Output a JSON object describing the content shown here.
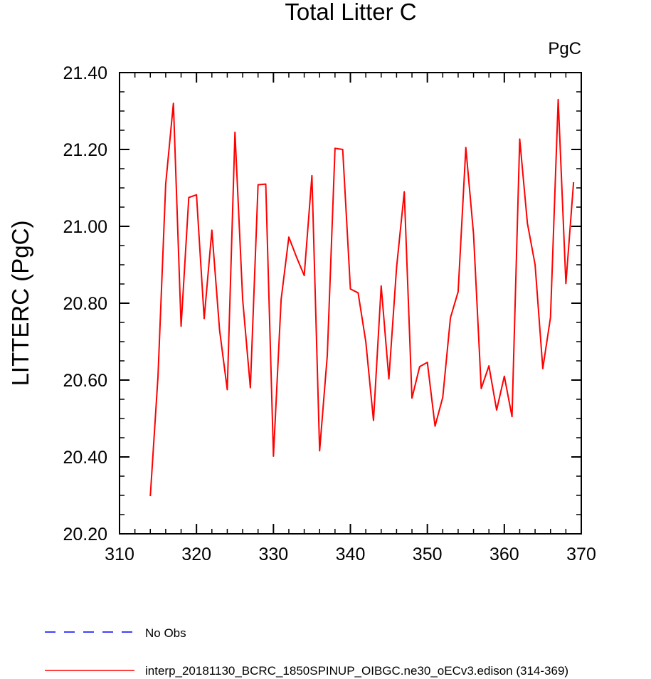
{
  "chart_data": {
    "type": "line",
    "title": "Total Litter C",
    "units_label": "PgC",
    "ylabel": "LITTERC  (PgC)",
    "xlabel": "",
    "xlim": [
      310,
      370
    ],
    "ylim": [
      20.2,
      21.4
    ],
    "x_ticks": [
      310,
      320,
      330,
      340,
      350,
      360,
      370
    ],
    "x_tick_labels": [
      "310",
      "320",
      "330",
      "340",
      "350",
      "360",
      "370"
    ],
    "y_ticks": [
      20.2,
      20.4,
      20.6,
      20.8,
      21.0,
      21.2,
      21.4
    ],
    "y_tick_labels": [
      "20.20",
      "20.40",
      "20.60",
      "20.80",
      "21.00",
      "21.20",
      "21.40"
    ],
    "grid": false,
    "legend_position": "bottom",
    "series": [
      {
        "name": "interp_20181130_BCRC_1850SPINUP_OIBGC.ne30_oECv3.edison (314-369)",
        "color": "#ff0000",
        "dash": "solid",
        "x": [
          314,
          315,
          316,
          317,
          318,
          319,
          320,
          321,
          322,
          323,
          324,
          325,
          326,
          327,
          328,
          329,
          330,
          331,
          332,
          333,
          334,
          335,
          336,
          337,
          338,
          339,
          340,
          341,
          342,
          343,
          344,
          345,
          346,
          347,
          348,
          349,
          350,
          351,
          352,
          353,
          354,
          355,
          356,
          357,
          358,
          359,
          360,
          361,
          362,
          363,
          364,
          365,
          366,
          367,
          368,
          369
        ],
        "values": [
          20.298,
          20.61,
          21.11,
          21.32,
          20.74,
          21.075,
          21.082,
          20.76,
          20.99,
          20.73,
          20.575,
          21.245,
          20.81,
          20.58,
          21.108,
          21.11,
          20.402,
          20.81,
          20.972,
          20.92,
          20.872,
          21.132,
          20.416,
          20.665,
          21.203,
          21.2,
          20.837,
          20.827,
          20.7,
          20.495,
          20.845,
          20.603,
          20.893,
          21.09,
          20.553,
          20.635,
          20.646,
          20.48,
          20.555,
          20.762,
          20.83,
          21.205,
          20.98,
          20.578,
          20.637,
          20.522,
          20.61,
          20.505,
          21.227,
          21.008,
          20.9,
          20.63,
          20.763,
          21.33,
          20.851,
          21.115
        ]
      }
    ],
    "legend": [
      {
        "label": "No Obs",
        "color": "#0000ff",
        "dash": "dashed"
      },
      {
        "label": "interp_20181130_BCRC_1850SPINUP_OIBGC.ne30_oECv3.edison (314-369)",
        "color": "#ff0000",
        "dash": "solid"
      }
    ]
  }
}
